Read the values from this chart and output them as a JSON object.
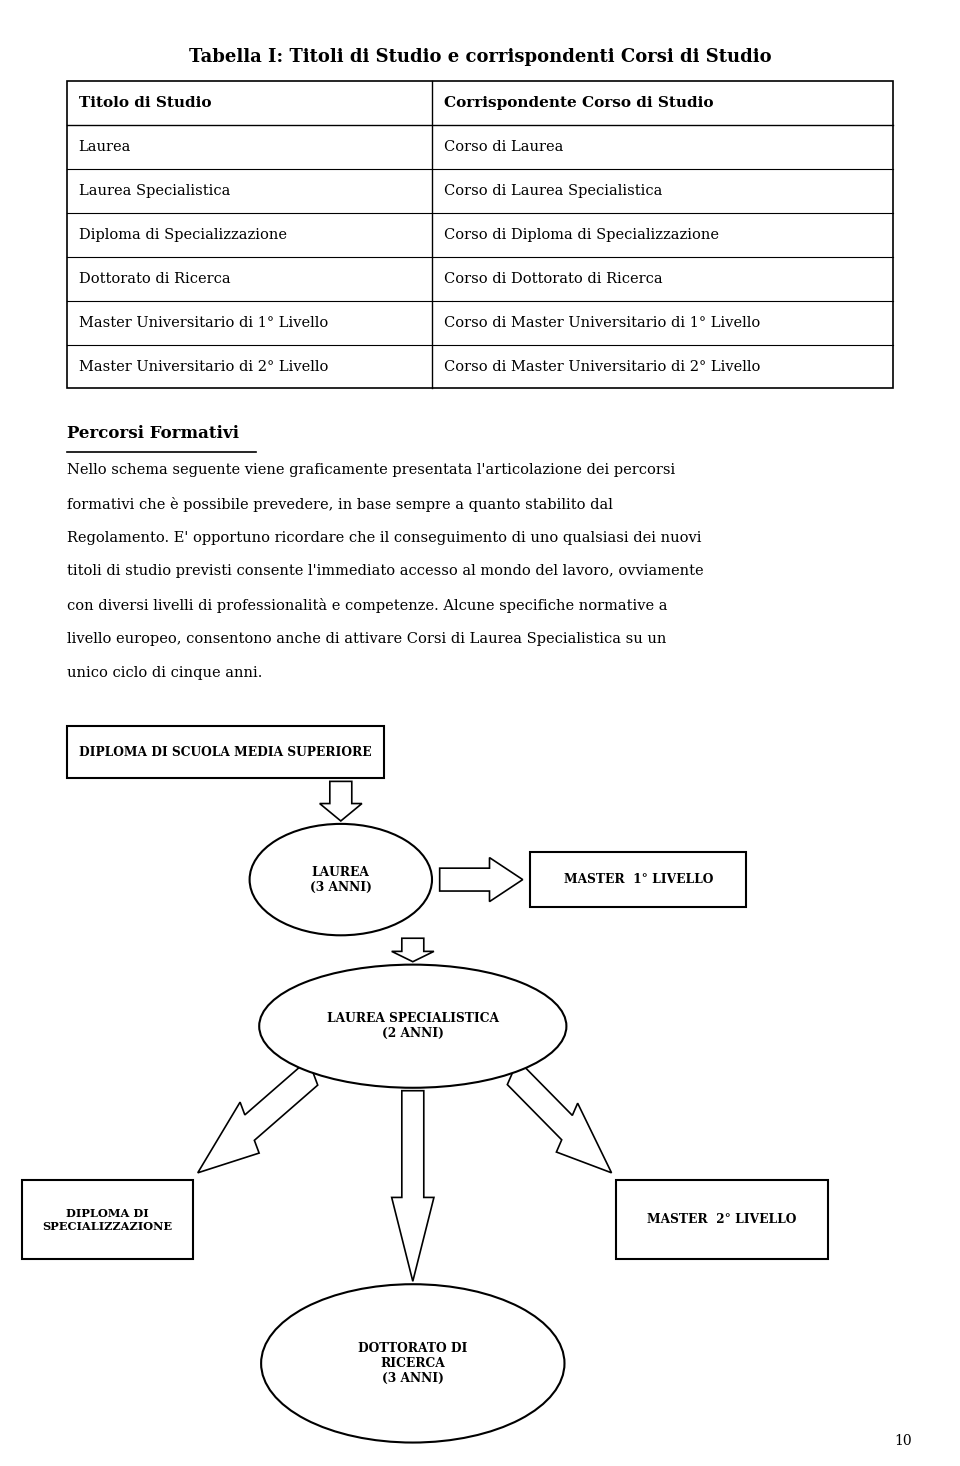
{
  "title": "Tabella I: Titoli di Studio e corrispondenti Corsi di Studio",
  "table_headers": [
    "Titolo di Studio",
    "Corrispondente Corso di Studio"
  ],
  "table_rows": [
    [
      "Laurea",
      "Corso di Laurea"
    ],
    [
      "Laurea Specialistica",
      "Corso di Laurea Specialistica"
    ],
    [
      "Diploma di Specializzazione",
      "Corso di Diploma di Specializzazione"
    ],
    [
      "Dottorato di Ricerca",
      "Corso di Dottorato di Ricerca"
    ],
    [
      "Master Universitario di 1° Livello",
      "Corso di Master Universitario di 1° Livello"
    ],
    [
      "Master Universitario di 2° Livello",
      "Corso di Master Universitario di 2° Livello"
    ]
  ],
  "section_title": "Percorsi Formativi",
  "para_lines": [
    "Nello schema seguente viene graficamente presentata l'articolazione dei percorsi",
    "formativi che è possibile prevedere, in base sempre a quanto stabilito dal",
    "Regolamento. E' opportuno ricordare che il conseguimento di uno qualsiasi dei nuovi",
    "titoli di studio previsti consente l'immediato accesso al mondo del lavoro, ovviamente",
    "con diversi livelli di professionalità e competenze. Alcune specifiche normative a",
    "livello europeo, consentono anche di attivare Corsi di Laurea Specialistica su un",
    "unico ciclo di cinque anni."
  ],
  "diagram_nodes": {
    "diploma_scuola": {
      "label": "DIPLOMA DI SCUOLA MEDIA SUPERIORE"
    },
    "laurea": {
      "label": "LAUREA\n(3 ANNI)"
    },
    "master1": {
      "label": "MASTER  1° LIVELLO"
    },
    "laurea_spec": {
      "label": "LAUREA SPECIALISTICA\n(2 ANNI)"
    },
    "diploma_spec": {
      "label": "DIPLOMA DI\nSPECIALIZZAZIONE"
    },
    "master2": {
      "label": "MASTER  2° LIVELLO"
    },
    "dottorato": {
      "label": "DOTTORATO DI\nRICERCA\n(3 ANNI)"
    }
  },
  "bg_color": "#ffffff",
  "text_color": "#000000",
  "page_number": "10"
}
